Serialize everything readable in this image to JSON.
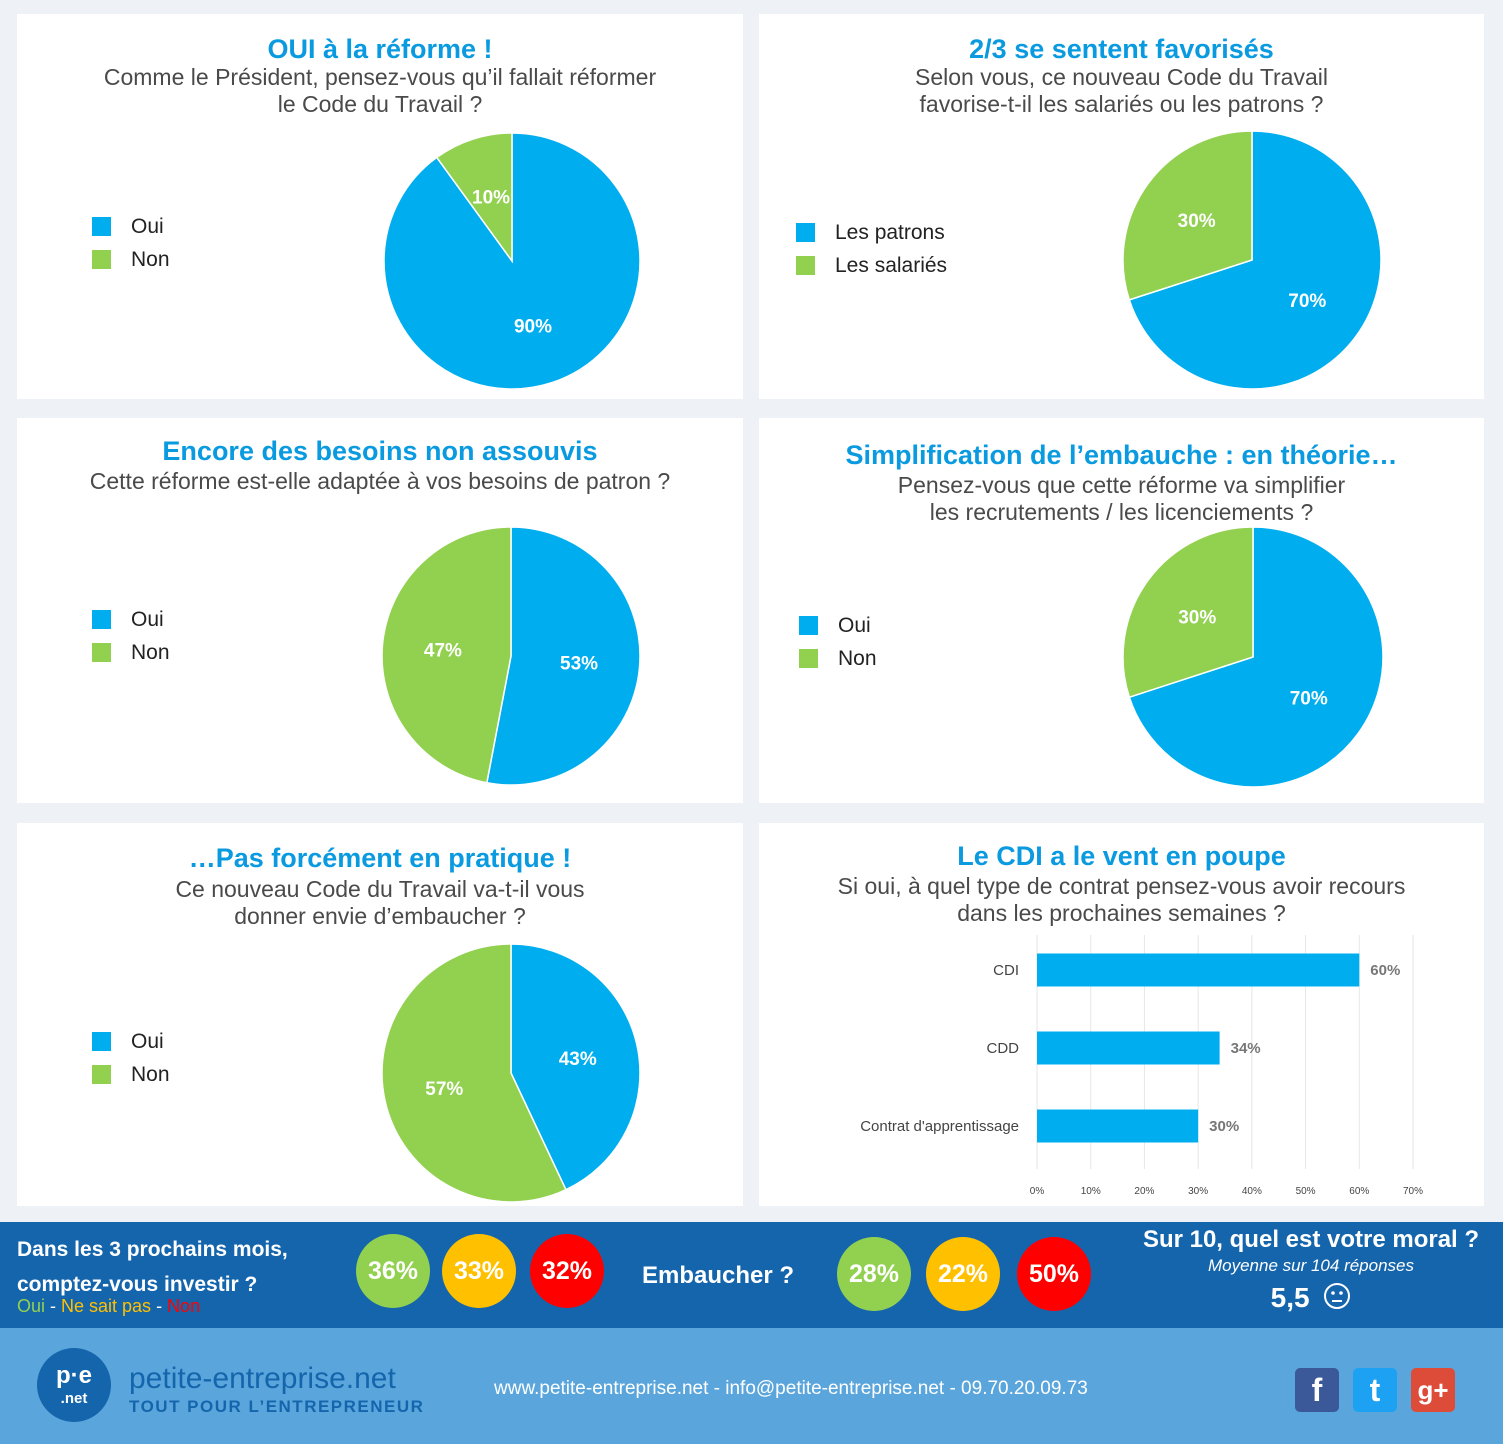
{
  "colors": {
    "blue": "#00aeef",
    "green": "#92d050",
    "yellow": "#ffc000",
    "red": "#ff0000",
    "title_blue": "#0a9ae0",
    "band": "#1565ad",
    "footer": "#5aa6dc"
  },
  "chart_data": [
    {
      "type": "pie",
      "title": "OUI à la réforme !",
      "subtitle": [
        "Comme le Président, pensez-vous qu’il fallait réformer",
        "le Code du Travail ?"
      ],
      "categories": [
        "Oui",
        "Non"
      ],
      "values": [
        90,
        10
      ],
      "labels": [
        "90%",
        "10%"
      ]
    },
    {
      "type": "pie",
      "title": "2/3 se sentent favorisés",
      "subtitle": [
        "Selon vous, ce nouveau Code du Travail",
        "favorise-t-il les salariés ou les patrons ?"
      ],
      "categories": [
        "Les patrons",
        "Les salariés"
      ],
      "values": [
        70,
        30
      ],
      "labels": [
        "70%",
        "30%"
      ]
    },
    {
      "type": "pie",
      "title": "Encore des besoins non assouvis",
      "subtitle": [
        "Cette réforme est-elle adaptée à vos besoins de patron ?"
      ],
      "categories": [
        "Oui",
        "Non"
      ],
      "values": [
        53,
        47
      ],
      "labels": [
        "53%",
        "47%"
      ]
    },
    {
      "type": "pie",
      "title": "Simplification de l’embauche : en théorie…",
      "subtitle": [
        "Pensez-vous que cette réforme va simplifier",
        "les recrutements / les licenciements ?"
      ],
      "categories": [
        "Oui",
        "Non"
      ],
      "values": [
        70,
        30
      ],
      "labels": [
        "70%",
        "30%"
      ]
    },
    {
      "type": "pie",
      "title": "…Pas forcément en pratique !",
      "subtitle": [
        "Ce nouveau Code du Travail va-t-il vous",
        "donner envie d’embaucher ?"
      ],
      "categories": [
        "Oui",
        "Non"
      ],
      "values": [
        43,
        57
      ],
      "labels": [
        "43%",
        "57%"
      ]
    },
    {
      "type": "bar",
      "orientation": "horizontal",
      "title": "Le CDI a le vent en poupe",
      "subtitle": [
        "Si oui, à quel type de contrat pensez-vous avoir recours",
        "dans les prochaines semaines ?"
      ],
      "categories": [
        "CDI",
        "CDD",
        "Contrat d'apprentissage"
      ],
      "values": [
        60,
        34,
        30
      ],
      "labels": [
        "60%",
        "34%",
        "30%"
      ],
      "xlim": [
        0,
        70
      ],
      "xticks": [
        "0%",
        "10%",
        "20%",
        "30%",
        "40%",
        "50%",
        "60%",
        "70%"
      ],
      "grid": true
    }
  ],
  "band": {
    "invest_question": [
      "Dans les 3 prochains mois,",
      "comptez-vous investir ?"
    ],
    "legend": {
      "oui": "Oui",
      "sep1": " - ",
      "nsp": "Ne sait pas",
      "sep2": " - ",
      "non": "Non"
    },
    "invest_values": [
      "36%",
      "33%",
      "32%"
    ],
    "hire_question": "Embaucher ?",
    "hire_values": [
      "28%",
      "22%",
      "50%"
    ],
    "moral_question": "Sur 10, quel est votre moral ?",
    "moral_note": "Moyenne sur 104 réponses",
    "moral_value": "5,5",
    "moral_icon": "neutral-face-icon"
  },
  "footer": {
    "logo_text": "p·e",
    "logo_sub": ".net",
    "brand": "petite-entreprise.net",
    "tagline": "TOUT POUR L’ENTREPRENEUR",
    "contact": "www.petite-entreprise.net - info@petite-entreprise.net - 09.70.20.09.73",
    "social": [
      {
        "icon": "facebook-icon",
        "glyph": "f",
        "color": "#3b5998"
      },
      {
        "icon": "twitter-icon",
        "glyph": "t",
        "color": "#1da1f2"
      },
      {
        "icon": "google-plus-icon",
        "glyph": "g+",
        "color": "#dd4b39"
      }
    ]
  }
}
